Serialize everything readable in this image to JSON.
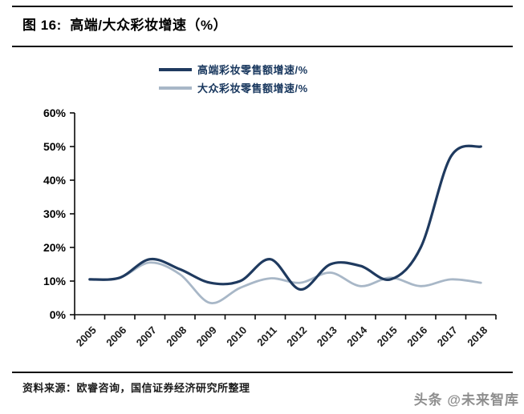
{
  "header": {
    "title": "图 16:  高端/大众彩妆增速（%）"
  },
  "legend": {
    "items": [
      {
        "label": "高端彩妆零售额增速/%",
        "color": "#1f3a5f"
      },
      {
        "label": "大众彩妆零售额增速/%",
        "color": "#a8b7c7"
      }
    ]
  },
  "footer": {
    "source": "资料来源：欧睿咨询，国信证券经济研究所整理",
    "watermark": "头条 @未来智库"
  },
  "colors": {
    "axis": "#0a0a0a",
    "highend": "#1f3a5f",
    "mass": "#a8b7c7"
  },
  "chart_data": {
    "type": "line",
    "title": "高端/大众彩妆增速（%）",
    "x": [
      "2005",
      "2006",
      "2007",
      "2008",
      "2009",
      "2010",
      "2011",
      "2012",
      "2013",
      "2014",
      "2015",
      "2016",
      "2017",
      "2018"
    ],
    "series": [
      {
        "name": "高端彩妆零售额增速/%",
        "color": "#1f3a5f",
        "values": [
          10.5,
          11,
          16.5,
          13.5,
          9.5,
          10,
          16.5,
          7.5,
          15,
          14.5,
          10.5,
          20,
          47,
          50
        ]
      },
      {
        "name": "大众彩妆零售额增速/%",
        "color": "#a8b7c7",
        "values": [
          10.5,
          11,
          15.5,
          12,
          3.5,
          8,
          10.8,
          9.5,
          12.5,
          8.5,
          11,
          8.5,
          10.5,
          9.5
        ]
      }
    ],
    "ylim": [
      0,
      60
    ],
    "ytick_step": 10,
    "ytick_format": "percent",
    "xlabel": "",
    "ylabel": "",
    "grid": false,
    "legend_position": "top",
    "smooth": true
  }
}
